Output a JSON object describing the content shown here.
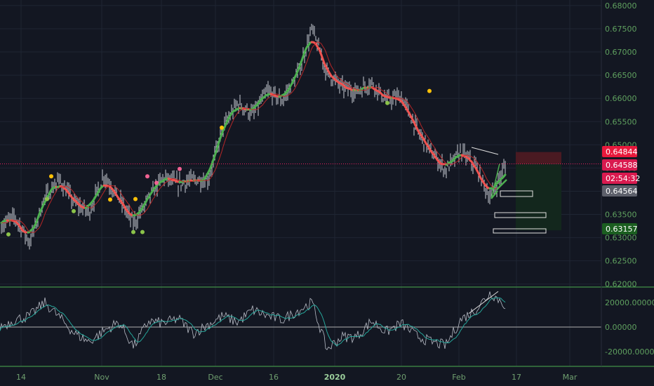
{
  "chart_data": [
    {
      "type": "line",
      "y_ticks": [
        0.68,
        0.675,
        0.67,
        0.665,
        0.66,
        0.655,
        0.65,
        0.645,
        0.64,
        0.635,
        0.63,
        0.625,
        0.62
      ],
      "y_tick_labels": [
        "0.68000",
        "0.67500",
        "0.67000",
        "0.66500",
        "0.66000",
        "0.65500",
        "0.65000",
        "0.64500",
        "0.64000",
        "0.63500",
        "0.63000",
        "0.62500",
        "0.62000"
      ],
      "ylim": [
        0.6195,
        0.6812
      ],
      "x_tick_labels": [
        "14",
        "Nov",
        "18",
        "Dec",
        "16",
        "2020",
        "20",
        "Feb",
        "17",
        "Mar"
      ],
      "grid": true,
      "series": [
        {
          "x": [
            0,
            3,
            6,
            9,
            12,
            15,
            18,
            21,
            24,
            27,
            30,
            33,
            36,
            39,
            42,
            45,
            48,
            51,
            54,
            57,
            60,
            63,
            66,
            69,
            72,
            75,
            78,
            81,
            84,
            87,
            90,
            93,
            96,
            99,
            102
          ],
          "y": [
            0.6325,
            0.6345,
            0.629,
            0.6385,
            0.6425,
            0.6375,
            0.6355,
            0.6435,
            0.6385,
            0.633,
            0.6385,
            0.643,
            0.6415,
            0.6425,
            0.6425,
            0.6535,
            0.659,
            0.6565,
            0.6615,
            0.6595,
            0.665,
            0.675,
            0.6655,
            0.6625,
            0.6615,
            0.6635,
            0.6595,
            0.6605,
            0.6535,
            0.6485,
            0.6445,
            0.6485,
            0.6455,
            0.6385,
            0.6455
          ]
        }
      ],
      "price_labels": [
        {
          "value": "0.64844",
          "color": "#e8193c"
        },
        {
          "value": "0.64588",
          "color": "#d91a4f"
        },
        {
          "value": "02:54:32",
          "color": "#d91a4f"
        },
        {
          "value": "0.64564",
          "color": "#5d606b"
        },
        {
          "value": "0.63157",
          "color": "#1b5e20"
        }
      ],
      "current_price": 0.64588
    },
    {
      "type": "line",
      "y_ticks": [
        20000,
        0,
        -20000
      ],
      "y_tick_labels": [
        "20000.00000",
        "0.00000",
        "-20000.00000"
      ],
      "ylim": [
        -32000,
        32000
      ],
      "series": [
        {
          "x": [
            0,
            3,
            6,
            9,
            12,
            15,
            18,
            21,
            24,
            27,
            30,
            33,
            36,
            39,
            42,
            45,
            48,
            51,
            54,
            57,
            60,
            63,
            66,
            69,
            72,
            75,
            78,
            81,
            84,
            87,
            90,
            93,
            96,
            99,
            102
          ],
          "y": [
            0,
            6000,
            9000,
            20000,
            8000,
            -5000,
            -12000,
            -3000,
            4000,
            -16000,
            5000,
            3000,
            7000,
            -5000,
            2000,
            9000,
            4000,
            14000,
            9000,
            6000,
            13000,
            20000,
            -18000,
            -8000,
            -8000,
            5000,
            -4000,
            3000,
            -7000,
            -12000,
            -15000,
            6000,
            14000,
            28000,
            18000
          ]
        }
      ]
    }
  ],
  "colors": {
    "background": "#131722",
    "grid": "#1f2533",
    "axis_text": "#5fa05f",
    "candle": "#c9ccd4",
    "ma_up": "#4caf50",
    "ma_down": "#ef5350",
    "stop_zone": "#4a1a22",
    "target_zone": "#13271d",
    "oscillator": "#b8bcc6",
    "signal": "#26a69a"
  }
}
